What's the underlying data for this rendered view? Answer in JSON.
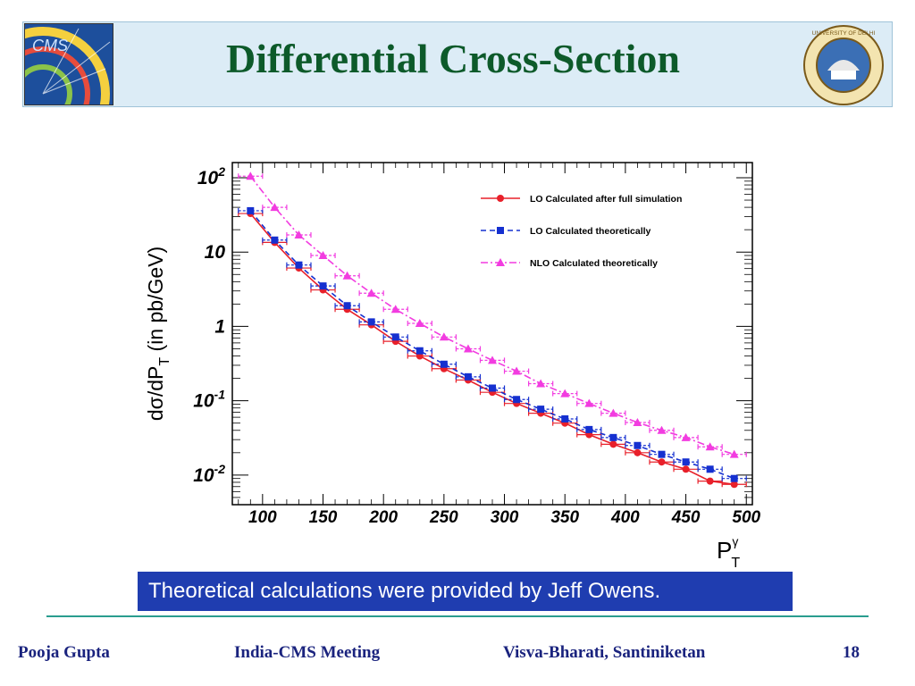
{
  "slide": {
    "title": "Differential Cross-Section",
    "callout": "Theoretical calculations were provided by Jeff Owens.",
    "footer": {
      "author": "Pooja Gupta",
      "meeting": "India-CMS Meeting",
      "venue": "Visva-Bharati, Santiniketan",
      "page": "18"
    },
    "logos": {
      "left": "CMS",
      "right": "UNIVERSITY OF DELHI"
    }
  },
  "chart_data": {
    "type": "line",
    "title": "",
    "xlabel": "P",
    "xlabel_sup": "γ",
    "xlabel_sub": "T",
    "ylabel": "dσ/dP",
    "ylabel_sub": "T",
    "ylabel_unit": "(in pb/GeV)",
    "xlim": [
      75,
      505
    ],
    "ylim": [
      0.004,
      160
    ],
    "yscale": "log",
    "grid": false,
    "legend_position": "top-right",
    "x_ticks": [
      100,
      150,
      200,
      250,
      300,
      350,
      400,
      450,
      500
    ],
    "x_tick_labels": [
      "100",
      "150",
      "200",
      "250",
      "300",
      "350",
      "400",
      "450",
      "500"
    ],
    "y_ticks": [
      0.01,
      0.1,
      1,
      10,
      100
    ],
    "y_tick_labels": [
      {
        "base": "10",
        "sup": "-2"
      },
      {
        "base": "10",
        "sup": "-1"
      },
      {
        "base": "1",
        "sup": ""
      },
      {
        "base": "10",
        "sup": ""
      },
      {
        "base": "10",
        "sup": "2"
      }
    ],
    "series": [
      {
        "name": "LO Calculated after full simulation",
        "color": "#e8202a",
        "marker": "circle",
        "dash": "solid",
        "x": [
          90,
          110,
          130,
          150,
          170,
          190,
          210,
          230,
          250,
          270,
          290,
          310,
          330,
          350,
          370,
          390,
          410,
          430,
          450,
          470,
          490
        ],
        "y": [
          33,
          13.5,
          6.1,
          3.1,
          1.7,
          1.05,
          0.63,
          0.4,
          0.27,
          0.19,
          0.13,
          0.092,
          0.068,
          0.05,
          0.035,
          0.026,
          0.02,
          0.015,
          0.012,
          0.0083,
          0.0075
        ]
      },
      {
        "name": "LO Calculated theoretically",
        "color": "#1530d0",
        "marker": "square",
        "dash": "dashed",
        "x": [
          90,
          110,
          130,
          150,
          170,
          190,
          210,
          230,
          250,
          270,
          290,
          310,
          330,
          350,
          370,
          390,
          410,
          430,
          450,
          470,
          490
        ],
        "y": [
          36,
          14.5,
          6.7,
          3.5,
          1.9,
          1.15,
          0.72,
          0.47,
          0.31,
          0.21,
          0.148,
          0.104,
          0.077,
          0.057,
          0.041,
          0.032,
          0.025,
          0.019,
          0.015,
          0.012,
          0.009
        ]
      },
      {
        "name": "NLO Calculated theoretically",
        "color": "#f23ce0",
        "marker": "triangle",
        "dash": "dashdot",
        "x": [
          90,
          110,
          130,
          150,
          170,
          190,
          210,
          230,
          250,
          270,
          290,
          310,
          330,
          350,
          370,
          390,
          410,
          430,
          450,
          470,
          490
        ],
        "y": [
          105,
          40,
          17,
          9.0,
          4.8,
          2.8,
          1.7,
          1.1,
          0.72,
          0.5,
          0.35,
          0.25,
          0.17,
          0.125,
          0.092,
          0.068,
          0.051,
          0.04,
          0.032,
          0.024,
          0.019
        ]
      }
    ]
  }
}
